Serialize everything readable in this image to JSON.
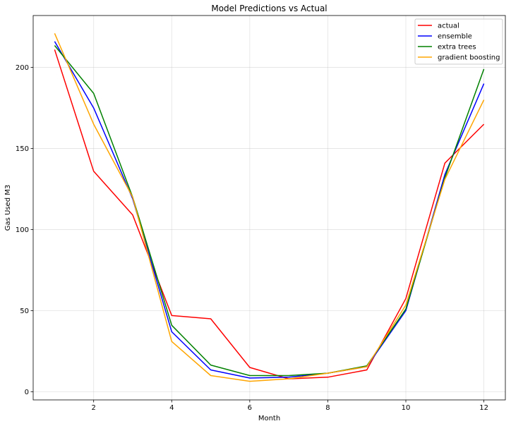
{
  "chart_data": {
    "type": "line",
    "title": "Model Predictions vs Actual",
    "xlabel": "Month",
    "ylabel": "Gas Used M3",
    "xlim": [
      0.45,
      12.55
    ],
    "ylim": [
      -5,
      232
    ],
    "xticks": [
      2,
      4,
      6,
      8,
      10,
      12
    ],
    "yticks": [
      0,
      50,
      100,
      150,
      200
    ],
    "grid": true,
    "legend_position": "top-right",
    "x": [
      1,
      2,
      3,
      4,
      5,
      6,
      7,
      8,
      9,
      10,
      11,
      12
    ],
    "series": [
      {
        "name": "actual",
        "color": "#ff0000",
        "values": [
          211,
          136,
          109,
          47,
          45,
          15,
          8,
          9,
          13.5,
          57.5,
          141,
          165
        ]
      },
      {
        "name": "ensemble",
        "color": "#0000ff",
        "values": [
          216,
          175,
          119,
          37,
          13.5,
          8.5,
          9,
          11.5,
          15.5,
          50,
          134,
          190
        ]
      },
      {
        "name": "extra trees",
        "color": "#008000",
        "values": [
          213.5,
          184,
          120,
          41,
          16.5,
          10,
          10,
          11.5,
          16,
          51,
          132,
          199
        ]
      },
      {
        "name": "gradient boosting",
        "color": "#ffa500",
        "values": [
          221,
          165,
          120,
          31,
          10,
          6.5,
          8,
          11.5,
          15.5,
          53.5,
          131,
          180
        ]
      }
    ]
  }
}
